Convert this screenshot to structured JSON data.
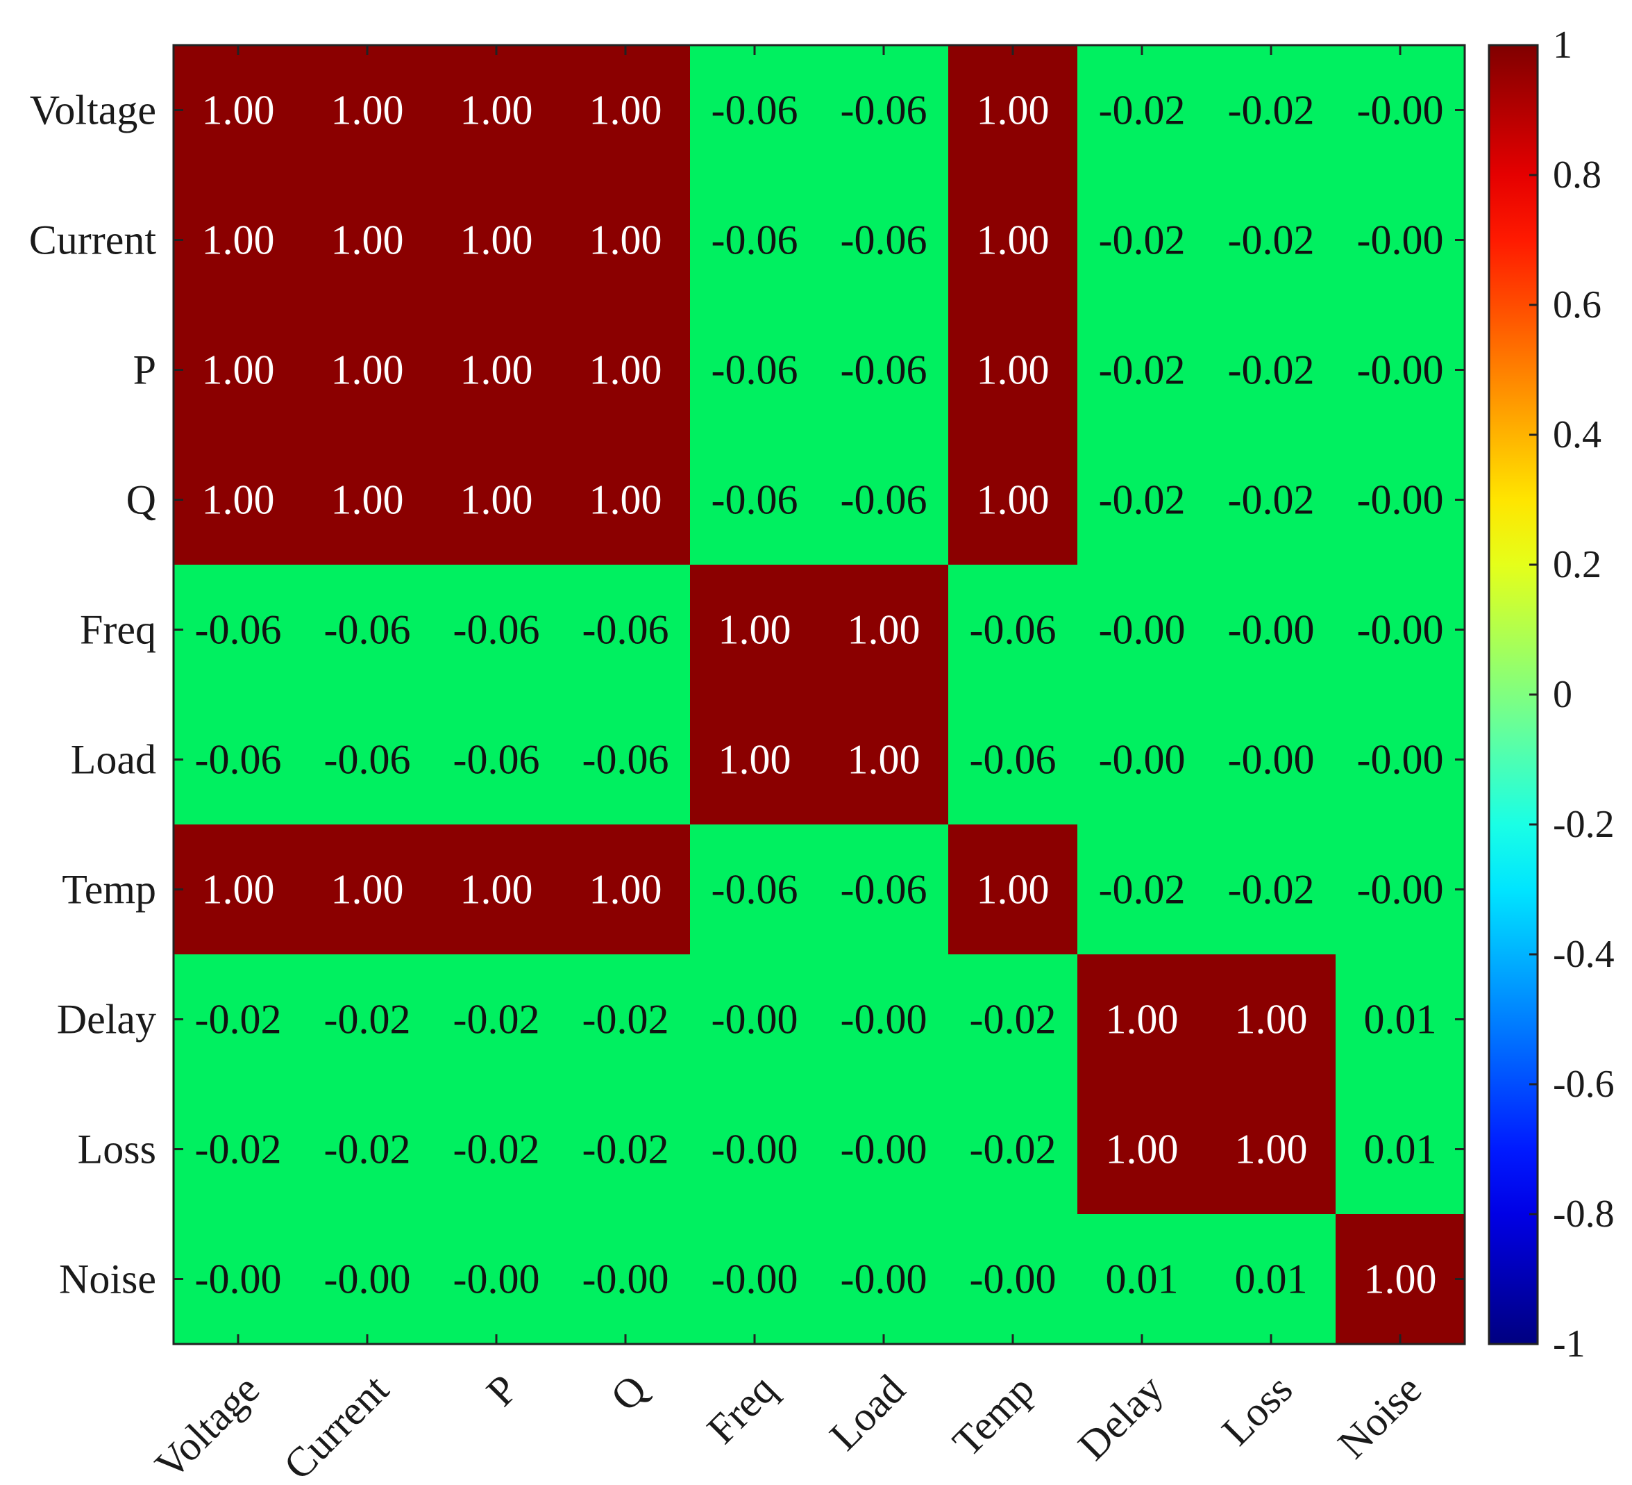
{
  "chart_data": {
    "type": "heatmap",
    "title": "",
    "xlabel": "",
    "ylabel": "",
    "x_categories": [
      "Voltage",
      "Current",
      "P",
      "Q",
      "Freq",
      "Load",
      "Temp",
      "Delay",
      "Loss",
      "Noise"
    ],
    "y_categories": [
      "Voltage",
      "Current",
      "P",
      "Q",
      "Freq",
      "Load",
      "Temp",
      "Delay",
      "Loss",
      "Noise"
    ],
    "values": [
      [
        1.0,
        1.0,
        1.0,
        1.0,
        -0.06,
        -0.06,
        1.0,
        -0.02,
        -0.02,
        -0.0
      ],
      [
        1.0,
        1.0,
        1.0,
        1.0,
        -0.06,
        -0.06,
        1.0,
        -0.02,
        -0.02,
        -0.0
      ],
      [
        1.0,
        1.0,
        1.0,
        1.0,
        -0.06,
        -0.06,
        1.0,
        -0.02,
        -0.02,
        -0.0
      ],
      [
        1.0,
        1.0,
        1.0,
        1.0,
        -0.06,
        -0.06,
        1.0,
        -0.02,
        -0.02,
        -0.0
      ],
      [
        -0.06,
        -0.06,
        -0.06,
        -0.06,
        1.0,
        1.0,
        -0.06,
        -0.0,
        -0.0,
        -0.0
      ],
      [
        -0.06,
        -0.06,
        -0.06,
        -0.06,
        1.0,
        1.0,
        -0.06,
        -0.0,
        -0.0,
        -0.0
      ],
      [
        1.0,
        1.0,
        1.0,
        1.0,
        -0.06,
        -0.06,
        1.0,
        -0.02,
        -0.02,
        -0.0
      ],
      [
        -0.02,
        -0.02,
        -0.02,
        -0.02,
        -0.0,
        -0.0,
        -0.02,
        1.0,
        1.0,
        0.01
      ],
      [
        -0.02,
        -0.02,
        -0.02,
        -0.02,
        -0.0,
        -0.0,
        -0.02,
        1.0,
        1.0,
        0.01
      ],
      [
        -0.0,
        -0.0,
        -0.0,
        -0.0,
        -0.0,
        -0.0,
        -0.0,
        0.01,
        0.01,
        1.0
      ]
    ],
    "cell_labels": [
      [
        "1.00",
        "1.00",
        "1.00",
        "1.00",
        "-0.06",
        "-0.06",
        "1.00",
        "-0.02",
        "-0.02",
        "-0.00"
      ],
      [
        "1.00",
        "1.00",
        "1.00",
        "1.00",
        "-0.06",
        "-0.06",
        "1.00",
        "-0.02",
        "-0.02",
        "-0.00"
      ],
      [
        "1.00",
        "1.00",
        "1.00",
        "1.00",
        "-0.06",
        "-0.06",
        "1.00",
        "-0.02",
        "-0.02",
        "-0.00"
      ],
      [
        "1.00",
        "1.00",
        "1.00",
        "1.00",
        "-0.06",
        "-0.06",
        "1.00",
        "-0.02",
        "-0.02",
        "-0.00"
      ],
      [
        "-0.06",
        "-0.06",
        "-0.06",
        "-0.06",
        "1.00",
        "1.00",
        "-0.06",
        "-0.00",
        "-0.00",
        "-0.00"
      ],
      [
        "-0.06",
        "-0.06",
        "-0.06",
        "-0.06",
        "1.00",
        "1.00",
        "-0.06",
        "-0.00",
        "-0.00",
        "-0.00"
      ],
      [
        "1.00",
        "1.00",
        "1.00",
        "1.00",
        "-0.06",
        "-0.06",
        "1.00",
        "-0.02",
        "-0.02",
        "-0.00"
      ],
      [
        "-0.02",
        "-0.02",
        "-0.02",
        "-0.02",
        "-0.00",
        "-0.00",
        "-0.02",
        "1.00",
        "1.00",
        "0.01"
      ],
      [
        "-0.02",
        "-0.02",
        "-0.02",
        "-0.02",
        "-0.00",
        "-0.00",
        "-0.02",
        "1.00",
        "1.00",
        "0.01"
      ],
      [
        "-0.00",
        "-0.00",
        "-0.00",
        "-0.00",
        "-0.00",
        "-0.00",
        "-0.00",
        "0.01",
        "0.01",
        "1.00"
      ]
    ],
    "value_range": [
      -1,
      1
    ],
    "colormap": "jet",
    "colorbar": {
      "position": "right",
      "ticks": [
        1,
        0.8,
        0.6,
        0.4,
        0.2,
        0,
        -0.2,
        -0.4,
        -0.6,
        -0.8,
        -1
      ],
      "tick_labels": [
        "1",
        "0.8",
        "0.6",
        "0.4",
        "0.2",
        "0",
        "-0.2",
        "-0.4",
        "-0.6",
        "-0.8",
        "-1"
      ]
    },
    "colors": {
      "strong_positive": "#8b0000",
      "near_zero": "#00f060",
      "text_on_dark": "#ffffff",
      "text_on_light": "#111111",
      "frame": "#222222"
    }
  }
}
